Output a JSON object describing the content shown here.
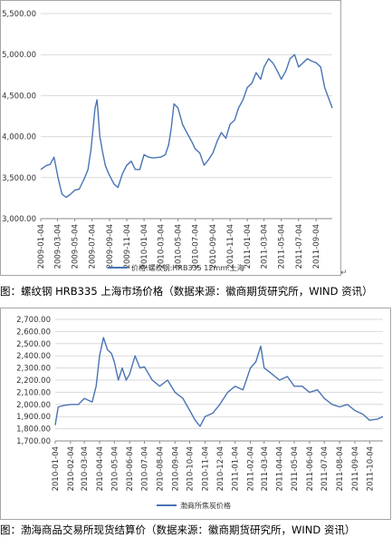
{
  "colors": {
    "line": "#4a74b5",
    "grid": "#d9d9d9",
    "axis": "#888888"
  },
  "captions": {
    "chart1": "图：螺纹钢 HRB335 上海市场价格（数据来源：徽商期货研究所，WIND 资讯）",
    "chart2": "图：渤海商品交易所现货结算价（数据来源：徽商期货研究所，WIND 资讯）"
  },
  "chart_data": [
    {
      "type": "line",
      "title": "",
      "xlabel": "",
      "ylabel": "",
      "ylim": [
        3000,
        5500
      ],
      "yticks": [
        "3,000.00",
        "3,500.00",
        "4,000.00",
        "4,500.00",
        "5,000.00",
        "5,500.00"
      ],
      "yticks_values": [
        3000,
        3500,
        4000,
        4500,
        5000,
        5500
      ],
      "xlim": [
        "2009-01-04",
        "2011-10-31"
      ],
      "xticks": [
        "2009-01-04",
        "2009-03-04",
        "2009-05-04",
        "2009-07-04",
        "2009-09-04",
        "2009-11-04",
        "2010-01-04",
        "2010-03-04",
        "2010-05-04",
        "2010-07-04",
        "2010-09-04",
        "2010-11-04",
        "2011-01-04",
        "2011-03-04",
        "2011-05-04",
        "2011-07-04",
        "2011-09-04"
      ],
      "grid": "horizontal",
      "legend": "bottom",
      "series": [
        {
          "name": "价格:螺纹钢:HRB335 12mm:上海",
          "x": [
            "2009-01-04",
            "2009-01-25",
            "2009-02-06",
            "2009-02-20",
            "2009-03-06",
            "2009-03-20",
            "2009-04-04",
            "2009-04-20",
            "2009-05-05",
            "2009-05-20",
            "2009-06-06",
            "2009-06-20",
            "2009-07-01",
            "2009-07-08",
            "2009-07-15",
            "2009-07-22",
            "2009-08-01",
            "2009-08-10",
            "2009-08-20",
            "2009-09-01",
            "2009-09-20",
            "2009-10-04",
            "2009-10-20",
            "2009-11-04",
            "2009-11-20",
            "2009-12-04",
            "2009-12-20",
            "2010-01-04",
            "2010-01-20",
            "2010-02-04",
            "2010-03-04",
            "2010-03-20",
            "2010-04-01",
            "2010-04-10",
            "2010-04-20",
            "2010-05-04",
            "2010-05-20",
            "2010-06-04",
            "2010-06-20",
            "2010-07-04",
            "2010-07-20",
            "2010-08-04",
            "2010-08-20",
            "2010-09-04",
            "2010-09-20",
            "2010-10-04",
            "2010-10-20",
            "2010-11-04",
            "2010-11-20",
            "2010-12-04",
            "2010-12-20",
            "2011-01-04",
            "2011-01-20",
            "2011-02-04",
            "2011-02-20",
            "2011-03-04",
            "2011-03-20",
            "2011-04-04",
            "2011-04-20",
            "2011-05-04",
            "2011-05-20",
            "2011-06-04",
            "2011-06-20",
            "2011-07-04",
            "2011-07-20",
            "2011-08-04",
            "2011-08-20",
            "2011-09-04",
            "2011-09-20",
            "2011-10-04",
            "2011-10-20",
            "2011-10-31"
          ],
          "values": [
            3600,
            3650,
            3660,
            3750,
            3500,
            3300,
            3260,
            3300,
            3350,
            3360,
            3480,
            3600,
            3850,
            4100,
            4350,
            4450,
            4000,
            3820,
            3650,
            3550,
            3420,
            3380,
            3550,
            3650,
            3700,
            3600,
            3600,
            3780,
            3750,
            3740,
            3750,
            3780,
            3900,
            4100,
            4400,
            4350,
            4150,
            4050,
            3950,
            3850,
            3800,
            3650,
            3720,
            3800,
            3950,
            4050,
            3980,
            4150,
            4200,
            4350,
            4450,
            4600,
            4650,
            4780,
            4700,
            4850,
            4950,
            4900,
            4800,
            4700,
            4800,
            4950,
            5000,
            4850,
            4900,
            4950,
            4920,
            4900,
            4850,
            4600,
            4450,
            4350
          ]
        }
      ]
    },
    {
      "type": "line",
      "title": "",
      "xlabel": "",
      "ylabel": "",
      "ylim": [
        1700,
        2700
      ],
      "yticks": [
        "1,700.00",
        "1,800.00",
        "1,900.00",
        "2,000.00",
        "2,100.00",
        "2,200.00",
        "2,300.00",
        "2,400.00",
        "2,500.00",
        "2,600.00",
        "2,700.00"
      ],
      "yticks_values": [
        1700,
        1800,
        1900,
        2000,
        2100,
        2200,
        2300,
        2400,
        2500,
        2600,
        2700
      ],
      "xlim": [
        "2010-01-04",
        "2011-10-31"
      ],
      "xticks": [
        "2010-01-04",
        "2010-02-04",
        "2010-03-04",
        "2010-04-04",
        "2010-05-04",
        "2010-06-04",
        "2010-07-04",
        "2010-08-04",
        "2010-09-04",
        "2010-10-04",
        "2010-11-04",
        "2010-12-04",
        "2011-01-04",
        "2011-02-04",
        "2011-03-04",
        "2011-04-04",
        "2011-05-04",
        "2011-06-04",
        "2011-07-04",
        "2011-08-04",
        "2011-09-04",
        "2011-10-04"
      ],
      "grid": "horizontal",
      "legend": "bottom",
      "series": [
        {
          "name": "渤商所焦炭价格",
          "x": [
            "2010-01-04",
            "2010-01-10",
            "2010-01-20",
            "2010-02-04",
            "2010-02-20",
            "2010-03-04",
            "2010-03-20",
            "2010-03-28",
            "2010-04-04",
            "2010-04-12",
            "2010-04-20",
            "2010-04-28",
            "2010-05-04",
            "2010-05-12",
            "2010-05-20",
            "2010-05-28",
            "2010-06-04",
            "2010-06-15",
            "2010-06-25",
            "2010-07-04",
            "2010-07-20",
            "2010-08-04",
            "2010-08-20",
            "2010-09-04",
            "2010-09-20",
            "2010-10-04",
            "2010-10-15",
            "2010-10-25",
            "2010-11-04",
            "2010-11-20",
            "2010-12-04",
            "2010-12-20",
            "2011-01-04",
            "2011-01-20",
            "2011-02-04",
            "2011-02-15",
            "2011-02-25",
            "2011-03-04",
            "2011-03-20",
            "2011-04-04",
            "2011-04-20",
            "2011-05-04",
            "2011-05-20",
            "2011-06-04",
            "2011-06-20",
            "2011-07-04",
            "2011-07-20",
            "2011-08-04",
            "2011-08-20",
            "2011-09-04",
            "2011-09-20",
            "2011-10-04",
            "2011-10-20",
            "2011-10-31"
          ],
          "values": [
            1830,
            1980,
            1990,
            2000,
            2000,
            2050,
            2020,
            2150,
            2400,
            2550,
            2450,
            2420,
            2350,
            2200,
            2300,
            2200,
            2250,
            2400,
            2300,
            2310,
            2200,
            2150,
            2200,
            2100,
            2050,
            1950,
            1870,
            1820,
            1900,
            1930,
            2000,
            2100,
            2150,
            2120,
            2300,
            2350,
            2480,
            2300,
            2250,
            2200,
            2230,
            2150,
            2150,
            2100,
            2120,
            2050,
            2000,
            1980,
            2000,
            1950,
            1920,
            1870,
            1880,
            1900
          ]
        }
      ]
    }
  ]
}
